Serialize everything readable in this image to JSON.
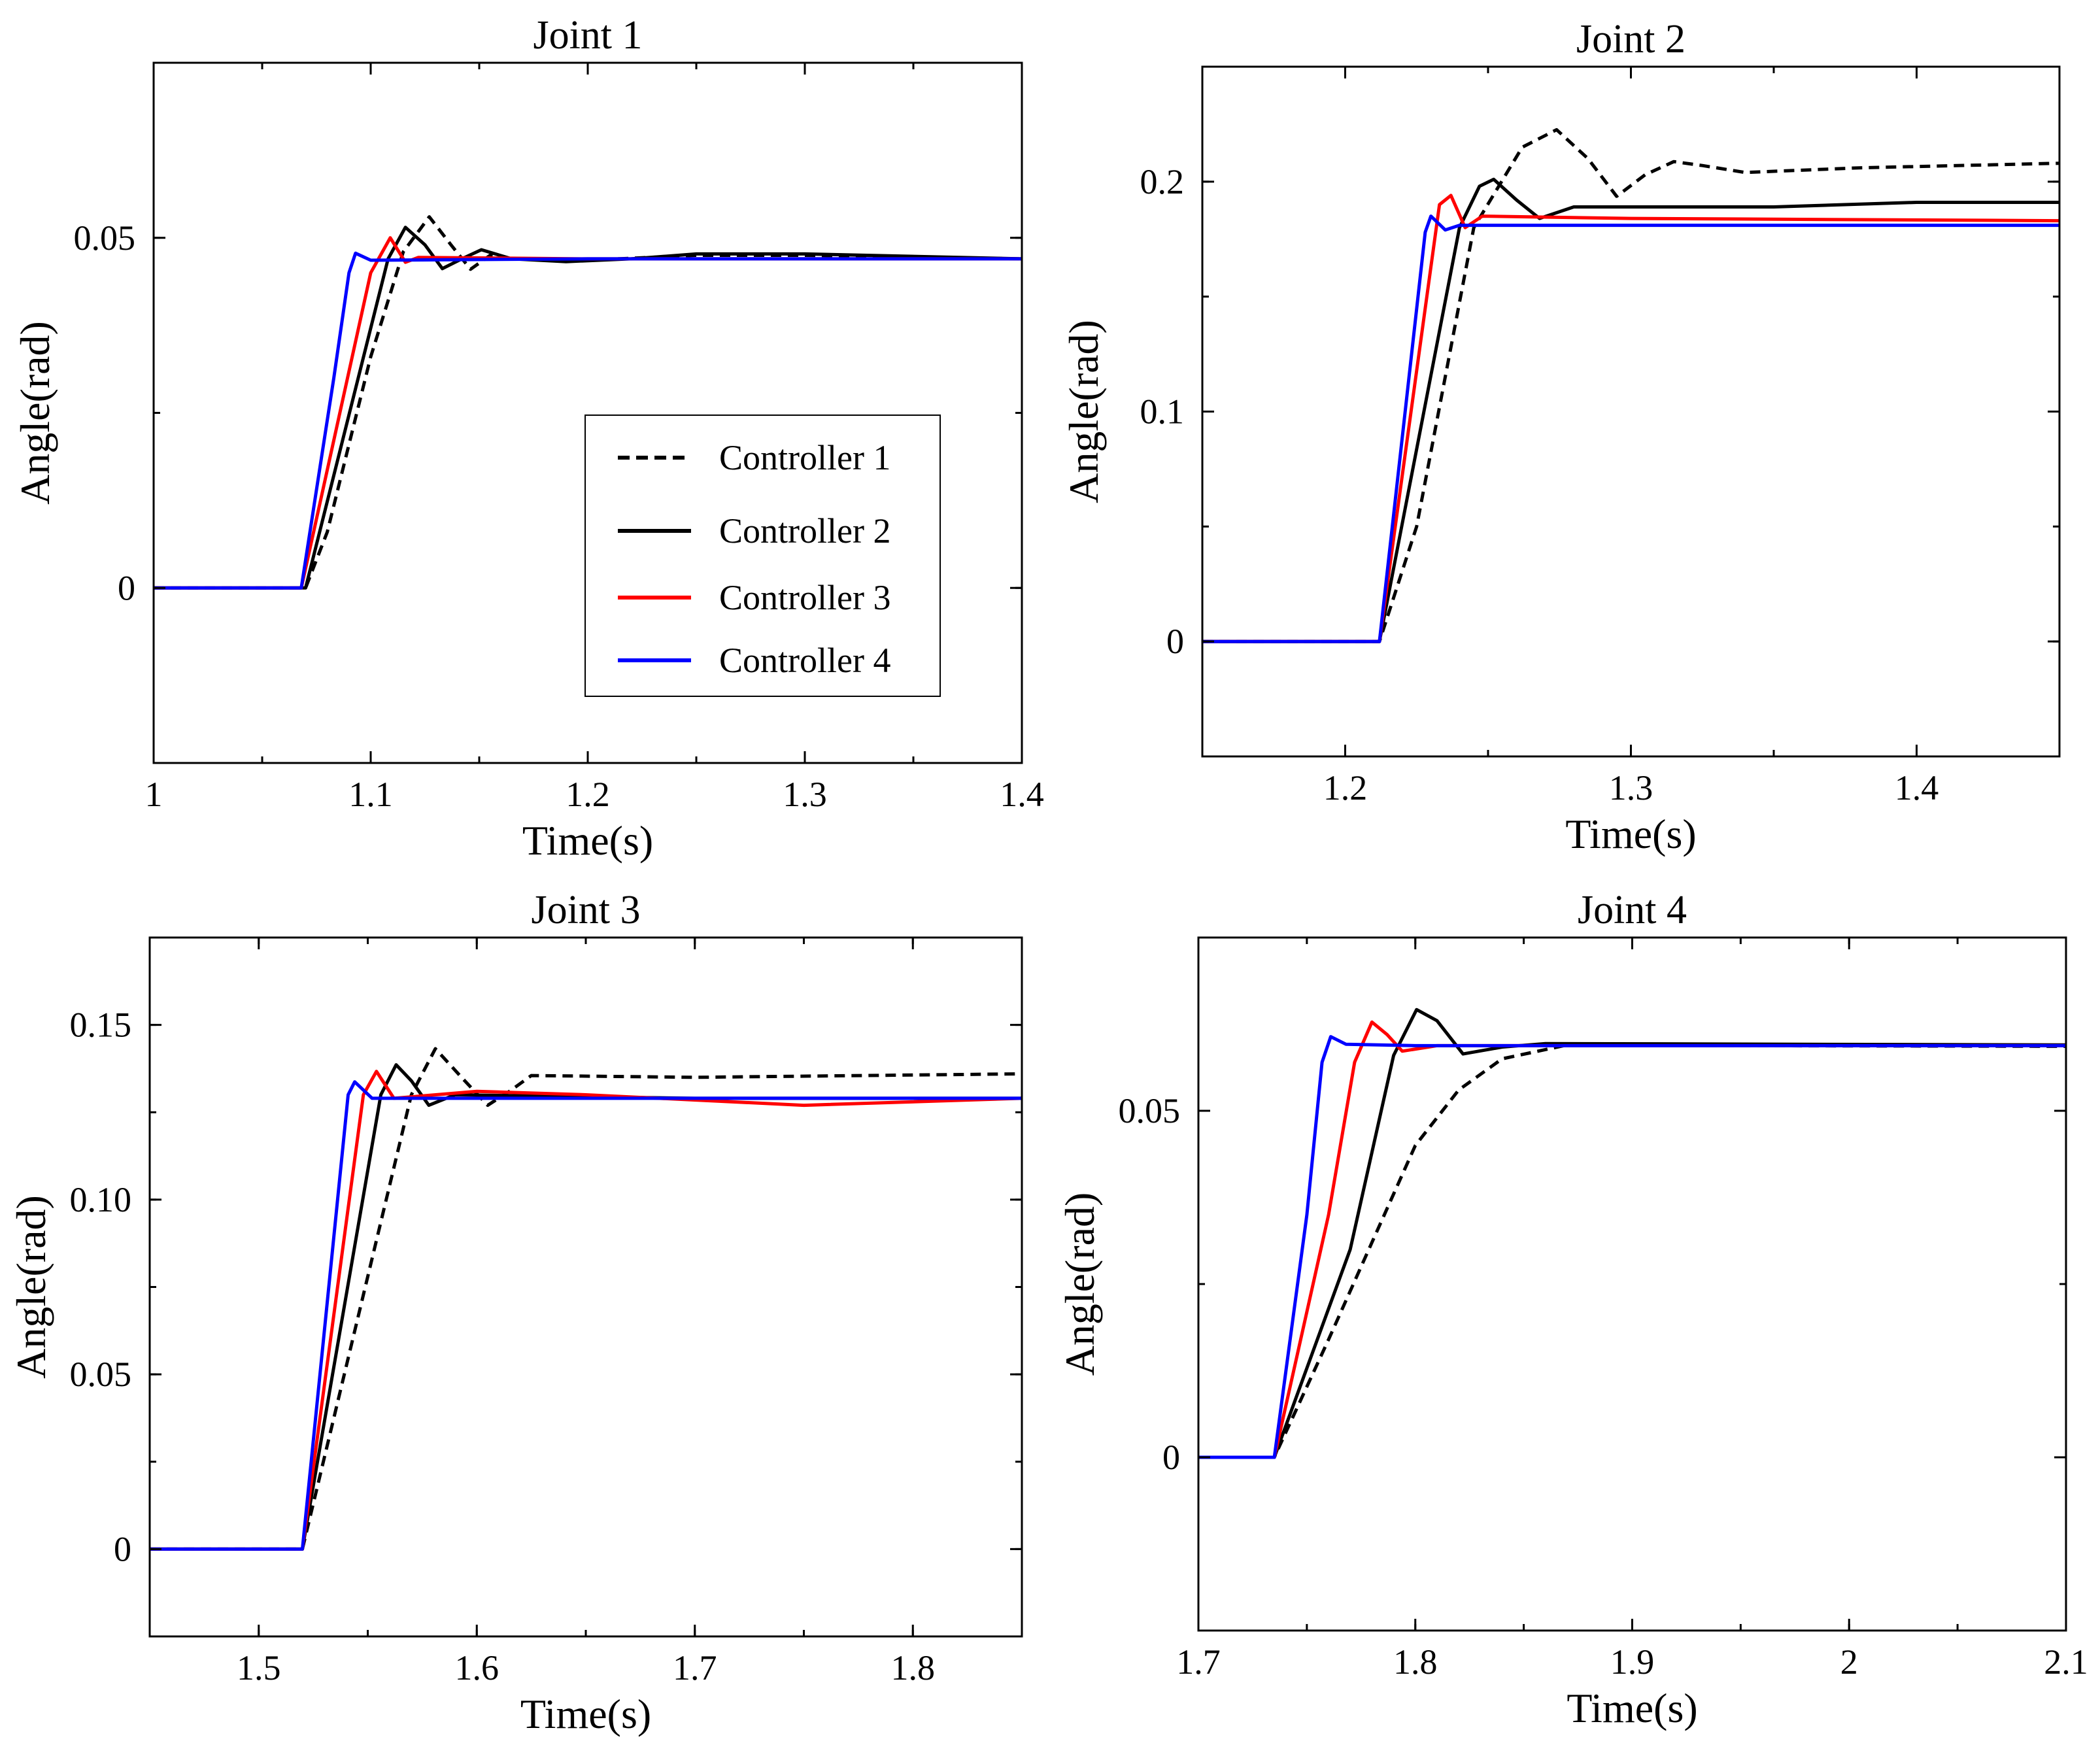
{
  "chart_data": [
    {
      "type": "line",
      "title": "Joint 1",
      "xlabel": "Time(s)",
      "ylabel": "Angle(rad)",
      "xlim": [
        1.0,
        1.4
      ],
      "ylim": [
        -0.025,
        0.075
      ],
      "xticks": [
        {
          "v": 1.0,
          "label": "1"
        },
        {
          "v": 1.1,
          "label": "1.1"
        },
        {
          "v": 1.2,
          "label": "1.2"
        },
        {
          "v": 1.3,
          "label": "1.3"
        },
        {
          "v": 1.4,
          "label": "1.4"
        }
      ],
      "yticks": [
        {
          "v": 0,
          "label": "0"
        },
        {
          "v": 0.05,
          "label": "0.05"
        }
      ],
      "xminor": 0.05,
      "yminor": 0.025,
      "legend": {
        "show": true,
        "placement": "center-right"
      },
      "series": [
        {
          "name": "Controller 1",
          "color": "#000000",
          "dash": true,
          "x": [
            1.0,
            1.07,
            1.08,
            1.1,
            1.115,
            1.127,
            1.137,
            1.146,
            1.155,
            1.165,
            1.2,
            1.25,
            1.3,
            1.4
          ],
          "y": [
            0,
            0,
            0.008,
            0.033,
            0.048,
            0.053,
            0.049,
            0.0455,
            0.0475,
            0.047,
            0.0468,
            0.0475,
            0.0475,
            0.047
          ]
        },
        {
          "name": "Controller 2",
          "color": "#000000",
          "dash": false,
          "x": [
            1.0,
            1.07,
            1.108,
            1.116,
            1.125,
            1.133,
            1.142,
            1.151,
            1.165,
            1.19,
            1.22,
            1.25,
            1.3,
            1.4
          ],
          "y": [
            0,
            0,
            0.047,
            0.0515,
            0.049,
            0.0456,
            0.047,
            0.0483,
            0.047,
            0.0466,
            0.047,
            0.0477,
            0.0477,
            0.047
          ]
        },
        {
          "name": "Controller 3",
          "color": "#ff0000",
          "dash": false,
          "x": [
            1.0,
            1.068,
            1.1,
            1.109,
            1.116,
            1.122,
            1.2,
            1.4
          ],
          "y": [
            0,
            0,
            0.045,
            0.05,
            0.0465,
            0.0472,
            0.047,
            0.047
          ]
        },
        {
          "name": "Controller 4",
          "color": "#0000ff",
          "dash": false,
          "x": [
            1.0,
            1.068,
            1.083,
            1.09,
            1.093,
            1.1,
            1.2,
            1.4
          ],
          "y": [
            0,
            0,
            0.03,
            0.045,
            0.0478,
            0.0468,
            0.047,
            0.047
          ]
        }
      ]
    },
    {
      "type": "line",
      "title": "Joint 2",
      "xlabel": "Time(s)",
      "ylabel": "Angle(rad)",
      "xlim": [
        1.15,
        1.45
      ],
      "ylim": [
        -0.05,
        0.25
      ],
      "xticks": [
        {
          "v": 1.2,
          "label": "1.2"
        },
        {
          "v": 1.3,
          "label": "1.3"
        },
        {
          "v": 1.4,
          "label": "1.4"
        }
      ],
      "yticks": [
        {
          "v": 0,
          "label": "0"
        },
        {
          "v": 0.1,
          "label": "0.1"
        },
        {
          "v": 0.2,
          "label": "0.2"
        }
      ],
      "xminor": 0.05,
      "yminor": 0.05,
      "legend": {
        "show": false
      },
      "series": [
        {
          "name": "Controller 1",
          "color": "#000000",
          "dash": true,
          "x": [
            1.15,
            1.212,
            1.225,
            1.245,
            1.262,
            1.274,
            1.285,
            1.295,
            1.305,
            1.315,
            1.325,
            1.34,
            1.38,
            1.45
          ],
          "y": [
            0,
            0,
            0.05,
            0.18,
            0.215,
            0.2226,
            0.21,
            0.1936,
            0.203,
            0.2087,
            0.207,
            0.204,
            0.206,
            0.208
          ]
        },
        {
          "name": "Controller 2",
          "color": "#000000",
          "dash": false,
          "x": [
            1.15,
            1.212,
            1.24,
            1.247,
            1.252,
            1.26,
            1.268,
            1.28,
            1.35,
            1.4,
            1.45
          ],
          "y": [
            0,
            0,
            0.18,
            0.198,
            0.201,
            0.192,
            0.184,
            0.189,
            0.189,
            0.191,
            0.191
          ]
        },
        {
          "name": "Controller 3",
          "color": "#ff0000",
          "dash": false,
          "x": [
            1.15,
            1.212,
            1.233,
            1.237,
            1.242,
            1.248,
            1.3,
            1.45
          ],
          "y": [
            0,
            0,
            0.19,
            0.194,
            0.18,
            0.185,
            0.184,
            0.183
          ]
        },
        {
          "name": "Controller 4",
          "color": "#0000ff",
          "dash": false,
          "x": [
            1.15,
            1.212,
            1.228,
            1.23,
            1.235,
            1.24,
            1.3,
            1.45
          ],
          "y": [
            0,
            0,
            0.178,
            0.185,
            0.179,
            0.181,
            0.181,
            0.181
          ]
        }
      ]
    },
    {
      "type": "line",
      "title": "Joint 3",
      "xlabel": "Time(s)",
      "ylabel": "Angle(rad)",
      "xlim": [
        1.45,
        1.85
      ],
      "ylim": [
        -0.025,
        0.175
      ],
      "xticks": [
        {
          "v": 1.5,
          "label": "1.5"
        },
        {
          "v": 1.6,
          "label": "1.6"
        },
        {
          "v": 1.7,
          "label": "1.7"
        },
        {
          "v": 1.8,
          "label": "1.8"
        }
      ],
      "yticks": [
        {
          "v": 0,
          "label": "0"
        },
        {
          "v": 0.05,
          "label": "0.05"
        },
        {
          "v": 0.1,
          "label": "0.10"
        },
        {
          "v": 0.15,
          "label": "0.15"
        }
      ],
      "xminor": 0.05,
      "yminor": 0.025,
      "legend": {
        "show": false
      },
      "series": [
        {
          "name": "Controller 1",
          "color": "#000000",
          "dash": true,
          "x": [
            1.45,
            1.52,
            1.57,
            1.581,
            1.593,
            1.605,
            1.615,
            1.625,
            1.7,
            1.85
          ],
          "y": [
            0,
            0,
            0.13,
            0.1432,
            0.135,
            0.127,
            0.131,
            0.1355,
            0.135,
            0.136
          ]
        },
        {
          "name": "Controller 2",
          "color": "#000000",
          "dash": false,
          "x": [
            1.45,
            1.52,
            1.556,
            1.563,
            1.57,
            1.578,
            1.59,
            1.7,
            1.85
          ],
          "y": [
            0,
            0,
            0.13,
            0.1386,
            0.134,
            0.127,
            0.13,
            0.129,
            0.129
          ]
        },
        {
          "name": "Controller 3",
          "color": "#ff0000",
          "dash": false,
          "x": [
            1.45,
            1.52,
            1.548,
            1.554,
            1.562,
            1.6,
            1.65,
            1.75,
            1.85
          ],
          "y": [
            0,
            0,
            0.13,
            0.1367,
            0.129,
            0.131,
            0.13,
            0.127,
            0.129
          ]
        },
        {
          "name": "Controller 4",
          "color": "#0000ff",
          "dash": false,
          "x": [
            1.45,
            1.52,
            1.541,
            1.544,
            1.552,
            1.6,
            1.85
          ],
          "y": [
            0,
            0,
            0.13,
            0.1337,
            0.129,
            0.129,
            0.129
          ]
        }
      ]
    },
    {
      "type": "line",
      "title": "Joint 4",
      "xlabel": "Time(s)",
      "ylabel": "Angle(rad)",
      "xlim": [
        1.7,
        2.1
      ],
      "ylim": [
        -0.025,
        0.075
      ],
      "xticks": [
        {
          "v": 1.7,
          "label": "1.7"
        },
        {
          "v": 1.8,
          "label": "1.8"
        },
        {
          "v": 1.9,
          "label": "1.9"
        },
        {
          "v": 2.0,
          "label": "2"
        },
        {
          "v": 2.1,
          "label": "2.1"
        }
      ],
      "yticks": [
        {
          "v": 0,
          "label": "0"
        },
        {
          "v": 0.05,
          "label": "0.05"
        }
      ],
      "xminor": 0.05,
      "yminor": 0.025,
      "legend": {
        "show": false
      },
      "series": [
        {
          "name": "Controller 1",
          "color": "#000000",
          "dash": true,
          "x": [
            1.7,
            1.735,
            1.76,
            1.78,
            1.8,
            1.82,
            1.84,
            1.87,
            1.95,
            2.1
          ],
          "y": [
            0,
            0,
            0.017,
            0.031,
            0.045,
            0.053,
            0.0575,
            0.0595,
            0.0594,
            0.0593
          ]
        },
        {
          "name": "Controller 2",
          "color": "#000000",
          "dash": false,
          "x": [
            1.7,
            1.735,
            1.77,
            1.79,
            1.8006,
            1.81,
            1.822,
            1.84,
            1.86,
            2.1
          ],
          "y": [
            0,
            0,
            0.03,
            0.058,
            0.0646,
            0.063,
            0.0582,
            0.0592,
            0.0597,
            0.0595
          ]
        },
        {
          "name": "Controller 3",
          "color": "#ff0000",
          "dash": false,
          "x": [
            1.7,
            1.735,
            1.76,
            1.772,
            1.78,
            1.787,
            1.794,
            1.81,
            2.1
          ],
          "y": [
            0,
            0,
            0.035,
            0.057,
            0.0628,
            0.061,
            0.0586,
            0.0594,
            0.0594
          ]
        },
        {
          "name": "Controller 4",
          "color": "#0000ff",
          "dash": false,
          "x": [
            1.7,
            1.735,
            1.75,
            1.757,
            1.761,
            1.768,
            1.8,
            2.1
          ],
          "y": [
            0,
            0,
            0.035,
            0.057,
            0.0607,
            0.0596,
            0.0594,
            0.0594
          ]
        }
      ]
    }
  ]
}
